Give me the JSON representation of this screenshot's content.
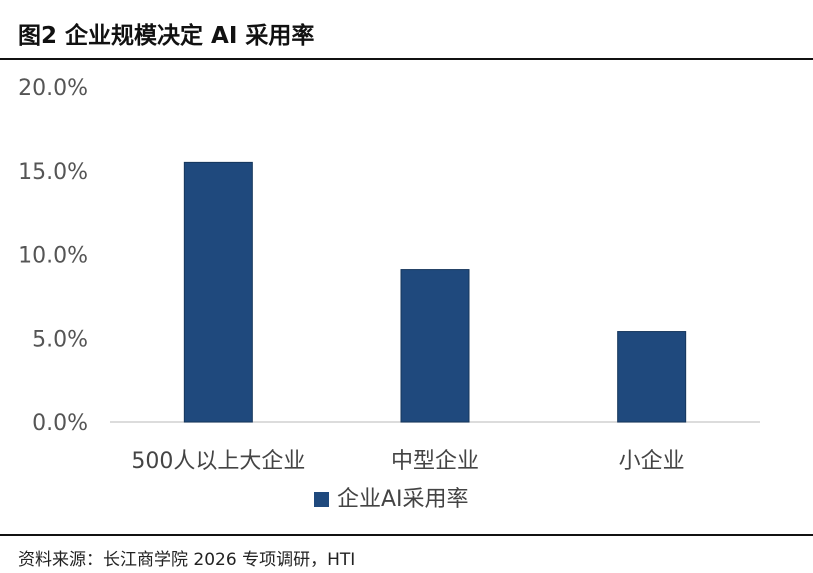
{
  "figure": {
    "title": "图2  企业规模决定 AI 采用率",
    "source": "资料来源：长江商学院 2026 专项调研，HTI"
  },
  "chart_data": {
    "type": "bar",
    "categories": [
      "500人以上大企业",
      "中型企业",
      "小企业"
    ],
    "series": [
      {
        "name": "企业AI采用率",
        "values": [
          15.5,
          9.1,
          5.4
        ],
        "color": "#1f497d"
      }
    ],
    "ylim": [
      0,
      20
    ],
    "yticks": [
      "0.0%",
      "5.0%",
      "10.0%",
      "15.0%",
      "20.0%"
    ],
    "xlabel": "",
    "ylabel": "",
    "grid": false,
    "legend": "bottom-center"
  }
}
